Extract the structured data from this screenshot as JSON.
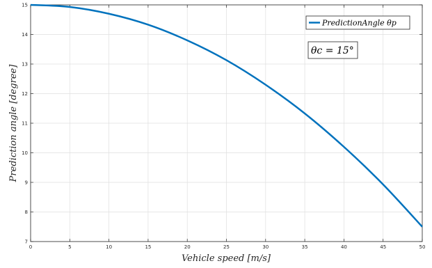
{
  "chart_data": {
    "type": "line",
    "title": "",
    "xlabel": "Vehicle speed [m/s]",
    "ylabel": "Prediction angle [degree]",
    "xlim": [
      0,
      50
    ],
    "ylim": [
      7,
      15
    ],
    "xticks": [
      0,
      5,
      10,
      15,
      20,
      25,
      30,
      35,
      40,
      45,
      50
    ],
    "yticks": [
      7,
      8,
      9,
      10,
      11,
      12,
      13,
      14,
      15
    ],
    "grid": true,
    "legend_position": "top-right",
    "series": [
      {
        "name": "PredictionAngle θp",
        "color": "#0072BD",
        "x": [
          0,
          5,
          10,
          15,
          20,
          25,
          30,
          35,
          40,
          45,
          50
        ],
        "y": [
          15.0,
          14.93,
          14.7,
          14.33,
          13.8,
          13.13,
          12.3,
          11.33,
          10.2,
          8.93,
          7.5
        ]
      }
    ],
    "annotation": "θc = 15°"
  }
}
